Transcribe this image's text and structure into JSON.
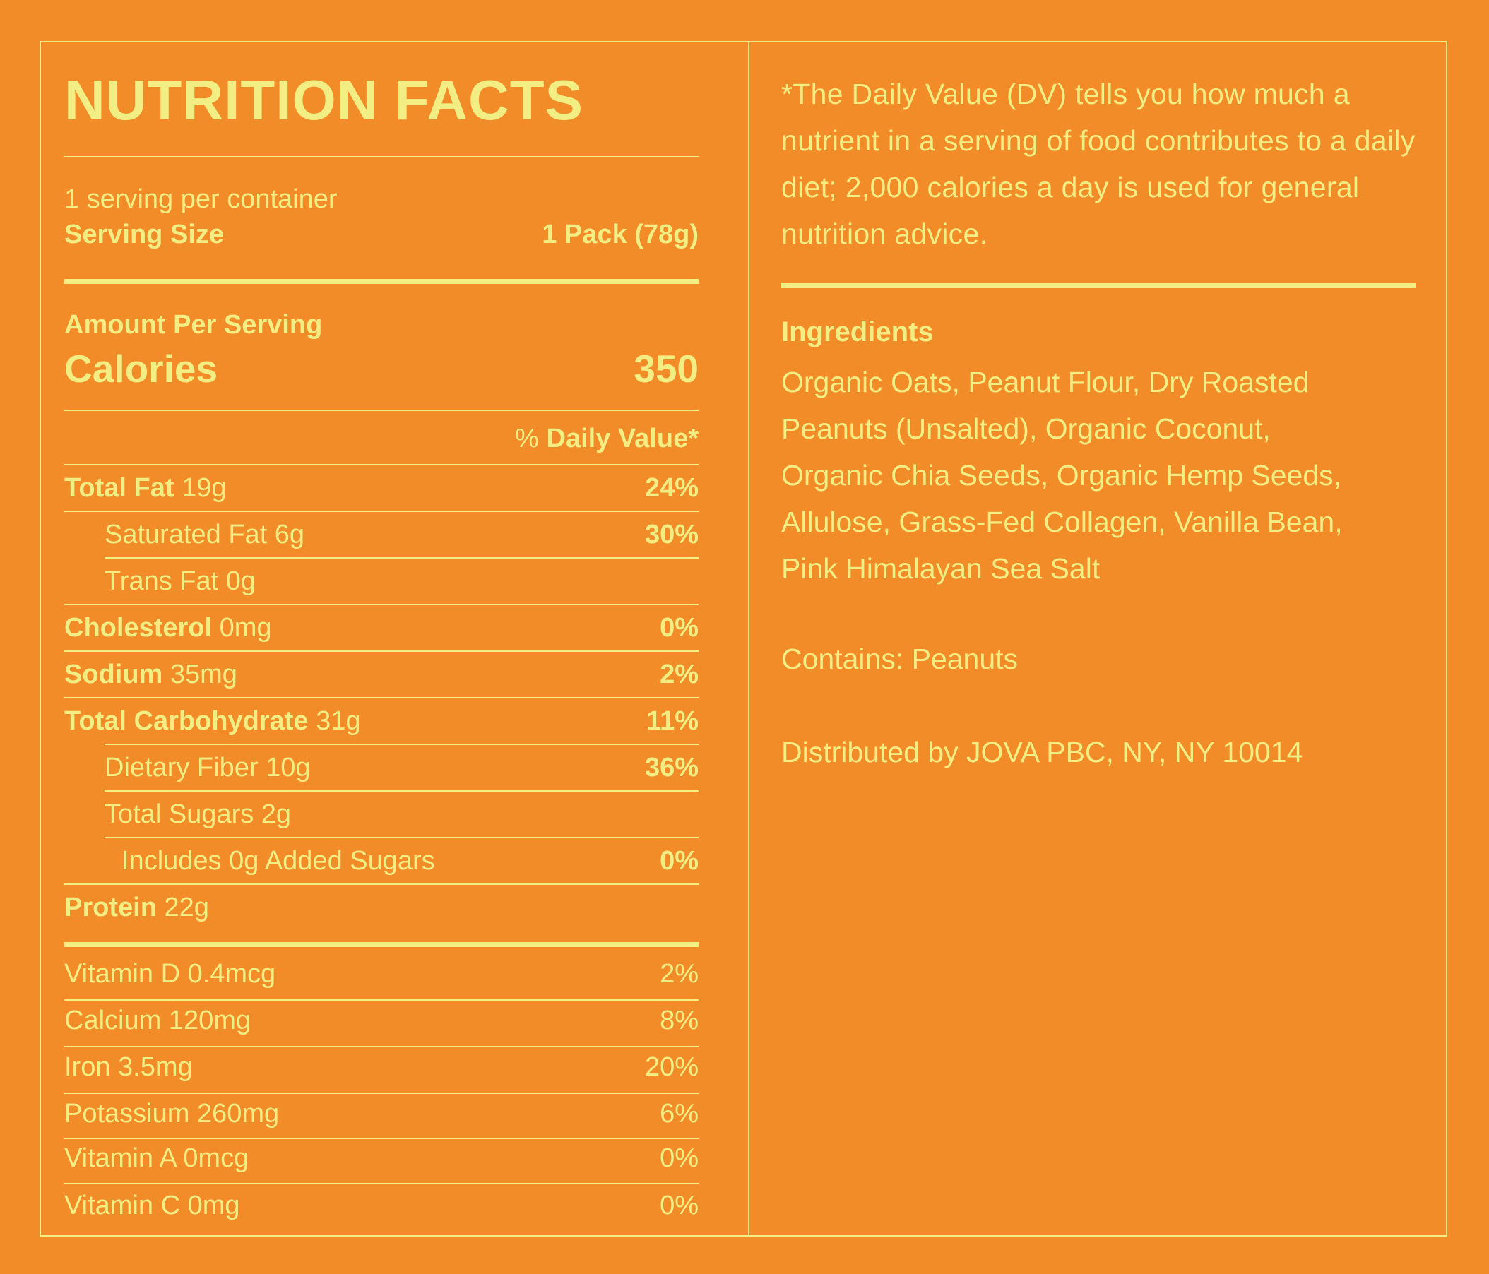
{
  "label": {
    "title": "NUTRITION FACTS",
    "servings_per_container": "1 serving per container",
    "serving_size_label": "Serving Size",
    "serving_size_value": "1 Pack (78g)",
    "amount_per_serving": "Amount Per Serving",
    "calories_label": "Calories",
    "calories_value": "350",
    "dv_prefix": "% ",
    "dv_label": "Daily Value*"
  },
  "nutrients": [
    {
      "name": "Total Fat",
      "amount": " 19g",
      "dv": "24%"
    },
    {
      "name": "Saturated Fat 6g",
      "amount": "",
      "dv": "30%"
    },
    {
      "name": "Trans Fat 0g",
      "amount": "",
      "dv": ""
    },
    {
      "name": "Cholesterol",
      "amount": " 0mg",
      "dv": "0%"
    },
    {
      "name": "Sodium",
      "amount": " 35mg",
      "dv": "2%"
    },
    {
      "name": "Total Carbohydrate",
      "amount": " 31g",
      "dv": "11%"
    },
    {
      "name": "Dietary Fiber 10g",
      "amount": "",
      "dv": "36%"
    },
    {
      "name": "Total Sugars 2g",
      "amount": "",
      "dv": ""
    },
    {
      "name": "Includes 0g Added Sugars",
      "amount": "",
      "dv": "0%"
    },
    {
      "name": "Protein",
      "amount": " 22g",
      "dv": ""
    }
  ],
  "vitamins": [
    {
      "name": "Vitamin D 0.4mcg",
      "dv": "2%"
    },
    {
      "name": "Calcium 120mg",
      "dv": "8%"
    },
    {
      "name": "Iron 3.5mg",
      "dv": "20%"
    },
    {
      "name": "Potassium 260mg",
      "dv": "6%"
    },
    {
      "name": "Vitamin A 0mcg",
      "dv": "0%"
    },
    {
      "name": "Vitamin C 0mg",
      "dv": "0%"
    }
  ],
  "right": {
    "footnote": "*The Daily Value (DV) tells you how much a nutrient in a serving of food contributes to a daily diet; 2,000 calories a day is used for general nutrition advice.",
    "ingredients_heading": "Ingredients",
    "ingredients_lines": [
      "Organic Oats, Peanut Flour, Dry Roasted",
      "Peanuts (Unsalted), Organic Coconut,",
      "Organic Chia Seeds, Organic Hemp Seeds,",
      "Allulose, Grass-Fed Collagen, Vanilla Bean,",
      "Pink Himalayan Sea Salt"
    ],
    "contains": "Contains: Peanuts",
    "distributed": "Distributed by JOVA PBC, NY, NY 10014"
  },
  "colors": {
    "background": "#F28C28",
    "ink": "#F2EE83"
  }
}
